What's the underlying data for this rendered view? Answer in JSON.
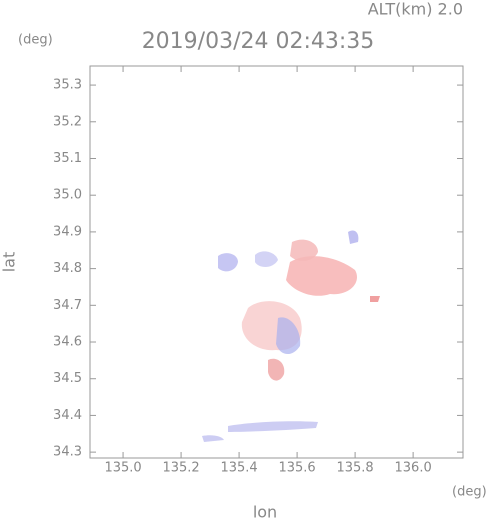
{
  "chart_data": {
    "type": "map",
    "title": "2019/03/24 02:43:35",
    "subtitle": "ALT(km) 2.0",
    "x_label": "lon",
    "y_label": "lat",
    "x_unit": "(deg)",
    "y_unit": "(deg)",
    "xlim": [
      134.886,
      136.172
    ],
    "ylim": [
      34.284,
      35.352
    ],
    "xticks": [
      {
        "value": 135,
        "label": "135.0"
      },
      135.2,
      135.4,
      135.6,
      135.8,
      {
        "value": 136,
        "label": "136.0"
      }
    ],
    "yticks": [
      34.3,
      34.4,
      34.5,
      34.6,
      34.7,
      34.8,
      34.9,
      {
        "value": 35,
        "label": "35.0"
      },
      35.1,
      35.2,
      35.3
    ]
  }
}
